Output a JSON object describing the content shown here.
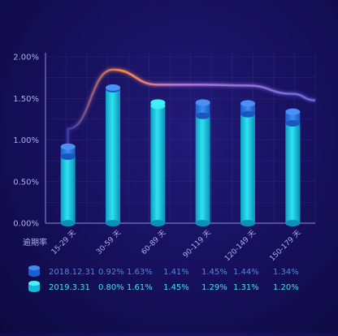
{
  "colors": {
    "background": "#160f5a",
    "grid": "#2f3a9a",
    "axis_text": "#aab0e8",
    "series_2018_top": "#2f7be6",
    "series_2018_body": "#1a6fe0",
    "series_2019_top": "#3ef2f5",
    "series_2019_body": "#14b8d8",
    "curve_start": "#3a3aa8",
    "curve_peak": "#ff8a3d",
    "curve_end": "#6b6be0",
    "legend_text_2018": "#4f86e0",
    "legend_text_2019": "#49dff0"
  },
  "chart_data": {
    "type": "bar",
    "ylabel": "逾期率",
    "y_ticks": [
      "0.00%",
      "0.50%",
      "1.00%",
      "1.50%",
      "2.00%"
    ],
    "ylim": [
      0,
      2.0
    ],
    "grid": true,
    "categories": [
      "15-29 天",
      "30-59 天",
      "60-89 天",
      "90-119 天",
      "120-149 天",
      "150-179 天"
    ],
    "series": [
      {
        "name": "2018.12.31",
        "values": [
          0.92,
          1.63,
          1.41,
          1.45,
          1.44,
          1.34
        ],
        "labels": [
          "0.92%",
          "1.63%",
          "1.41%",
          "1.45%",
          "1.44%",
          "1.34%"
        ]
      },
      {
        "name": "2019.3.31",
        "values": [
          0.8,
          1.61,
          1.45,
          1.29,
          1.31,
          1.2
        ],
        "labels": [
          "0.80%",
          "1.61%",
          "1.45%",
          "1.29%",
          "1.31%",
          "1.20%"
        ]
      }
    ],
    "legend_placement": "bottom"
  }
}
